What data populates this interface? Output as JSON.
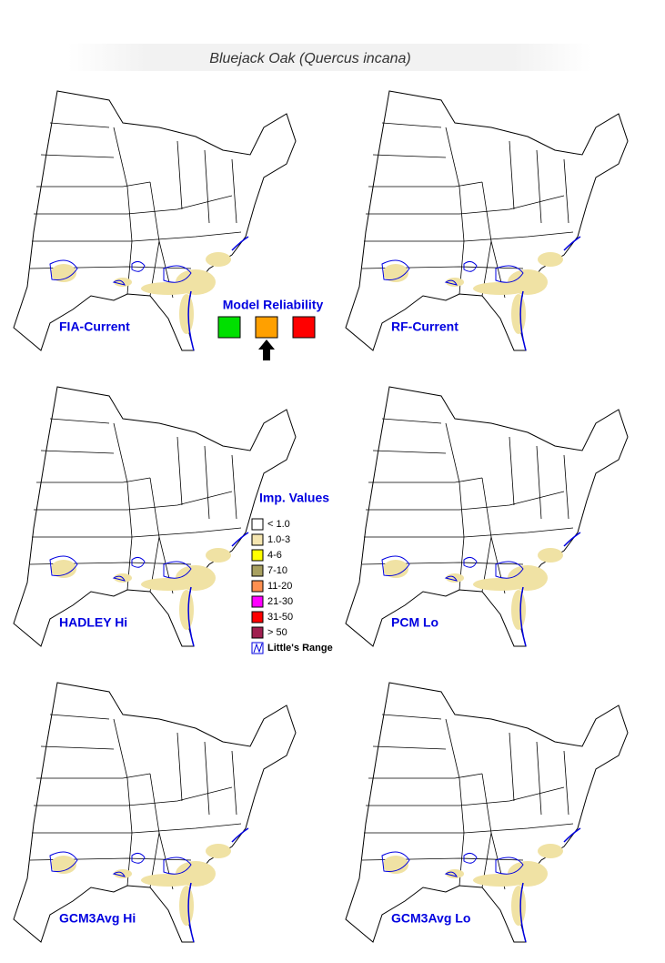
{
  "title": "Bluejack Oak (Quercus incana)",
  "maps": [
    {
      "label": "FIA-Current"
    },
    {
      "label": "RF-Current"
    },
    {
      "label": "HADLEY Hi"
    },
    {
      "label": "PCM Lo"
    },
    {
      "label": "GCM3Avg Hi"
    },
    {
      "label": "GCM3Avg Lo"
    }
  ],
  "reliability": {
    "title": "Model Reliability",
    "colors": [
      "#00e000",
      "#ffa000",
      "#ff0000"
    ],
    "selected": 1
  },
  "legend": {
    "title": "Imp. Values",
    "items": [
      {
        "label": "< 1.0",
        "color": "#ffffff"
      },
      {
        "label": "1.0-3",
        "color": "#f5e6b0"
      },
      {
        "label": "4-6",
        "color": "#ffff00"
      },
      {
        "label": "7-10",
        "color": "#a8a060"
      },
      {
        "label": "11-20",
        "color": "#ff9050"
      },
      {
        "label": "21-30",
        "color": "#ff00ff"
      },
      {
        "label": "31-50",
        "color": "#ff0000"
      },
      {
        "label": "> 50",
        "color": "#a02050"
      },
      {
        "label": "Little's Range"
      }
    ]
  }
}
